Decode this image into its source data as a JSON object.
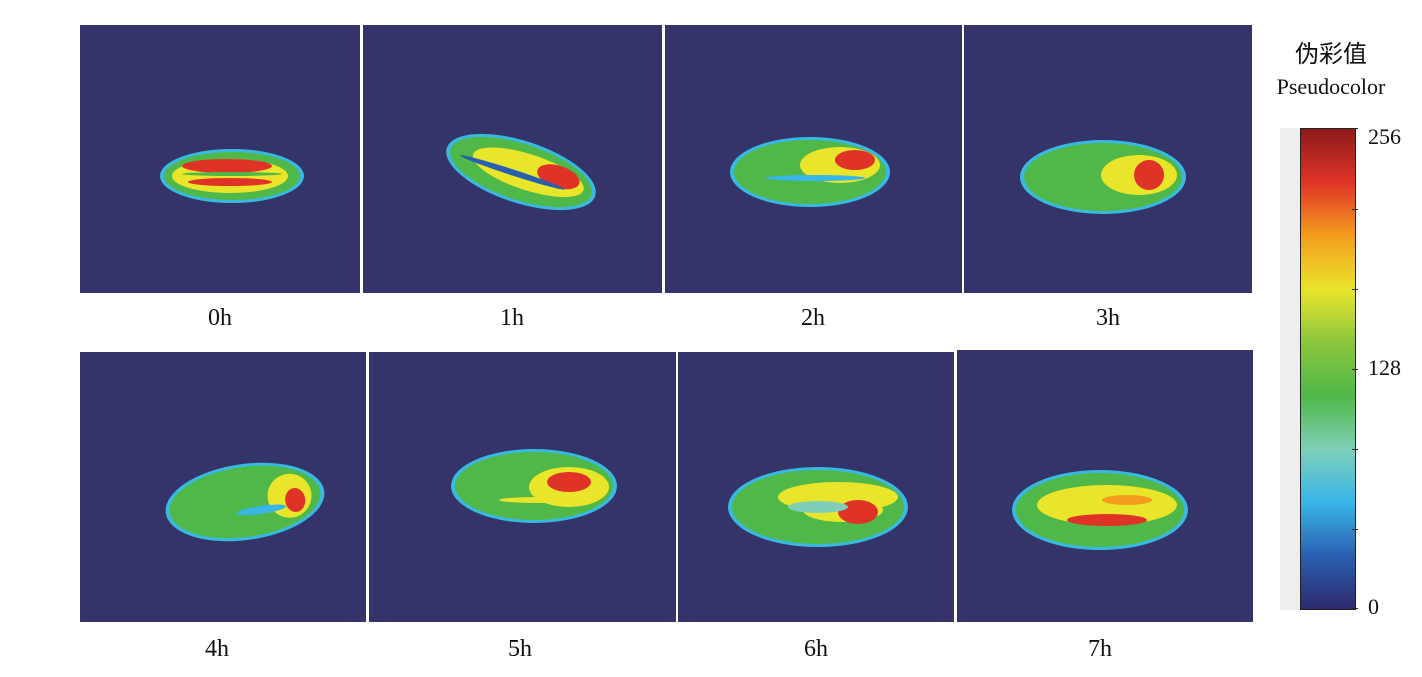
{
  "panels": [
    {
      "label": "0h"
    },
    {
      "label": "1h"
    },
    {
      "label": "2h"
    },
    {
      "label": "3h"
    },
    {
      "label": "4h"
    },
    {
      "label": "5h"
    },
    {
      "label": "6h"
    },
    {
      "label": "7h"
    }
  ],
  "colorbar": {
    "title_cn": "伪彩值",
    "title_en": "Pseudocolor",
    "max_label": "256",
    "mid_label": "128",
    "min_label": "0",
    "colors": [
      "#2f2a6e",
      "#2a5fb0",
      "#38b6e8",
      "#7fcfb8",
      "#4fb848",
      "#8cc63e",
      "#e9e52a",
      "#f39c1e",
      "#e03327",
      "#8b1a1a"
    ]
  },
  "background_color": "#34336a"
}
